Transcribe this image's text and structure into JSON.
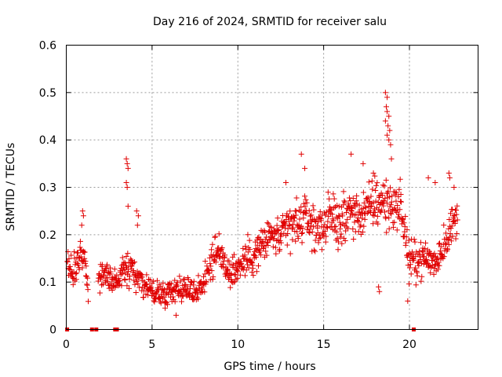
{
  "chart_data": {
    "type": "scatter",
    "title": "Day 216 of 2024, SRMTID for receiver salu",
    "xlabel": "GPS time / hours",
    "ylabel": "SRMTID / TECUs",
    "xlim": [
      0,
      24
    ],
    "ylim": [
      0,
      0.6
    ],
    "xticks": [
      0,
      5,
      10,
      15,
      20
    ],
    "yticks": [
      0,
      0.1,
      0.2,
      0.3,
      0.4,
      0.5,
      0.6
    ],
    "xtick_labels": [
      "0",
      "5",
      "10",
      "15",
      "20"
    ],
    "ytick_labels": [
      "0",
      "0.1",
      "0.2",
      "0.3",
      "0.4",
      "0.5",
      "0.6"
    ],
    "grid": true,
    "marker": "plus",
    "color": "#e00000",
    "series": [
      {
        "name": "SRMTID",
        "trend_profile": {
          "x": [
            0.0,
            0.5,
            1.0,
            1.5,
            2.0,
            2.5,
            3.0,
            3.5,
            4.0,
            4.5,
            5.0,
            5.5,
            6.0,
            6.5,
            7.0,
            7.5,
            8.0,
            8.5,
            9.0,
            9.5,
            10.0,
            10.5,
            11.0,
            11.5,
            12.0,
            12.5,
            13.0,
            13.5,
            14.0,
            14.5,
            15.0,
            15.5,
            16.0,
            16.5,
            17.0,
            17.5,
            18.0,
            18.5,
            19.0,
            19.5,
            20.0,
            20.5,
            21.0,
            21.5,
            22.0,
            22.5,
            22.8
          ],
          "y": [
            0.14,
            0.12,
            0.17,
            0.0,
            0.12,
            0.11,
            0.1,
            0.14,
            0.12,
            0.1,
            0.08,
            0.075,
            0.08,
            0.09,
            0.085,
            0.08,
            0.1,
            0.15,
            0.16,
            0.12,
            0.13,
            0.15,
            0.16,
            0.18,
            0.2,
            0.19,
            0.22,
            0.22,
            0.24,
            0.21,
            0.22,
            0.24,
            0.22,
            0.25,
            0.24,
            0.25,
            0.27,
            0.27,
            0.26,
            0.26,
            0.14,
            0.15,
            0.15,
            0.14,
            0.18,
            0.22,
            0.24
          ],
          "spread": [
            0.04,
            0.04,
            0.05,
            0.0,
            0.04,
            0.04,
            0.04,
            0.05,
            0.04,
            0.04,
            0.03,
            0.03,
            0.03,
            0.03,
            0.03,
            0.03,
            0.04,
            0.05,
            0.05,
            0.04,
            0.05,
            0.05,
            0.05,
            0.05,
            0.05,
            0.05,
            0.06,
            0.06,
            0.06,
            0.05,
            0.05,
            0.06,
            0.06,
            0.06,
            0.06,
            0.06,
            0.07,
            0.07,
            0.06,
            0.06,
            0.05,
            0.05,
            0.04,
            0.05,
            0.05,
            0.05,
            0.05
          ]
        },
        "spikes": [
          {
            "x": 3.5,
            "y": 0.36
          },
          {
            "x": 3.55,
            "y": 0.35
          },
          {
            "x": 3.6,
            "y": 0.34
          },
          {
            "x": 3.5,
            "y": 0.31
          },
          {
            "x": 3.55,
            "y": 0.3
          },
          {
            "x": 3.6,
            "y": 0.26
          },
          {
            "x": 4.1,
            "y": 0.25
          },
          {
            "x": 4.2,
            "y": 0.24
          },
          {
            "x": 4.15,
            "y": 0.22
          },
          {
            "x": 0.95,
            "y": 0.25
          },
          {
            "x": 1.0,
            "y": 0.24
          },
          {
            "x": 0.9,
            "y": 0.22
          },
          {
            "x": 13.7,
            "y": 0.37
          },
          {
            "x": 13.9,
            "y": 0.34
          },
          {
            "x": 12.8,
            "y": 0.31
          },
          {
            "x": 16.6,
            "y": 0.37
          },
          {
            "x": 17.3,
            "y": 0.35
          },
          {
            "x": 17.9,
            "y": 0.33
          },
          {
            "x": 18.6,
            "y": 0.5
          },
          {
            "x": 18.7,
            "y": 0.49
          },
          {
            "x": 18.65,
            "y": 0.47
          },
          {
            "x": 18.7,
            "y": 0.46
          },
          {
            "x": 18.8,
            "y": 0.45
          },
          {
            "x": 18.6,
            "y": 0.44
          },
          {
            "x": 18.75,
            "y": 0.43
          },
          {
            "x": 18.85,
            "y": 0.42
          },
          {
            "x": 18.7,
            "y": 0.41
          },
          {
            "x": 18.8,
            "y": 0.4
          },
          {
            "x": 18.9,
            "y": 0.39
          },
          {
            "x": 18.95,
            "y": 0.36
          },
          {
            "x": 21.1,
            "y": 0.32
          },
          {
            "x": 21.5,
            "y": 0.31
          },
          {
            "x": 22.3,
            "y": 0.33
          },
          {
            "x": 22.35,
            "y": 0.32
          },
          {
            "x": 22.6,
            "y": 0.3
          },
          {
            "x": 19.9,
            "y": 0.06
          },
          {
            "x": 18.2,
            "y": 0.09
          },
          {
            "x": 18.25,
            "y": 0.08
          },
          {
            "x": 6.4,
            "y": 0.03
          }
        ],
        "zero_points": [
          0.05,
          1.5,
          1.75,
          2.85,
          2.95,
          20.25
        ]
      }
    ]
  }
}
